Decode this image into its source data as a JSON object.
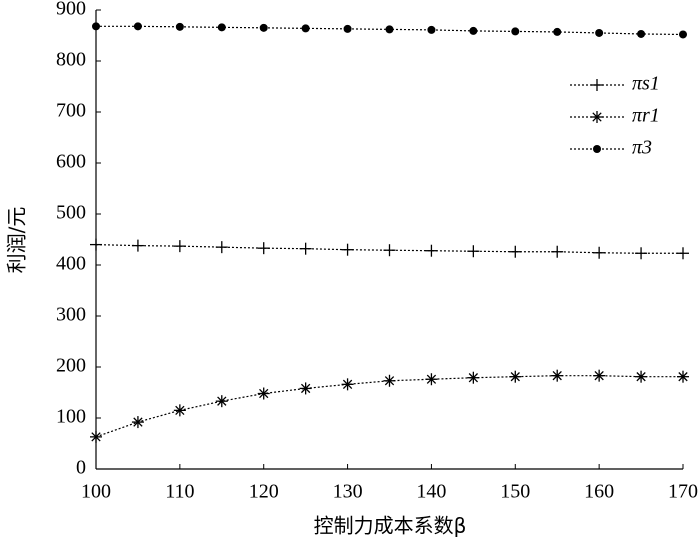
{
  "chart_data": {
    "type": "line",
    "xlabel": "控制力成本系数β",
    "ylabel": "利润/元",
    "x": [
      100,
      105,
      110,
      115,
      120,
      125,
      130,
      135,
      140,
      145,
      150,
      155,
      160,
      165,
      170
    ],
    "xlim": [
      100,
      170
    ],
    "xticks": [
      100,
      110,
      120,
      130,
      140,
      150,
      160,
      170
    ],
    "ylim": [
      0,
      900
    ],
    "yticks": [
      0,
      100,
      200,
      300,
      400,
      500,
      600,
      700,
      800,
      900
    ],
    "line_style": "dotted",
    "legend": "upper right",
    "series": [
      {
        "name": "πs1",
        "color": "#000000",
        "marker": "plus",
        "values": [
          440,
          438,
          437,
          435,
          433,
          432,
          430,
          429,
          428,
          427,
          426,
          426,
          424,
          423,
          423
        ]
      },
      {
        "name": "πr1",
        "color": "#000000",
        "marker": "star",
        "values": [
          63,
          92,
          115,
          133,
          148,
          158,
          166,
          173,
          176,
          179,
          181,
          183,
          183,
          181,
          181
        ]
      },
      {
        "name": "π3",
        "color": "#000000",
        "marker": "circle",
        "values": [
          868,
          868,
          867,
          866,
          865,
          864,
          863,
          862,
          861,
          859,
          858,
          857,
          855,
          853,
          852
        ]
      }
    ]
  }
}
